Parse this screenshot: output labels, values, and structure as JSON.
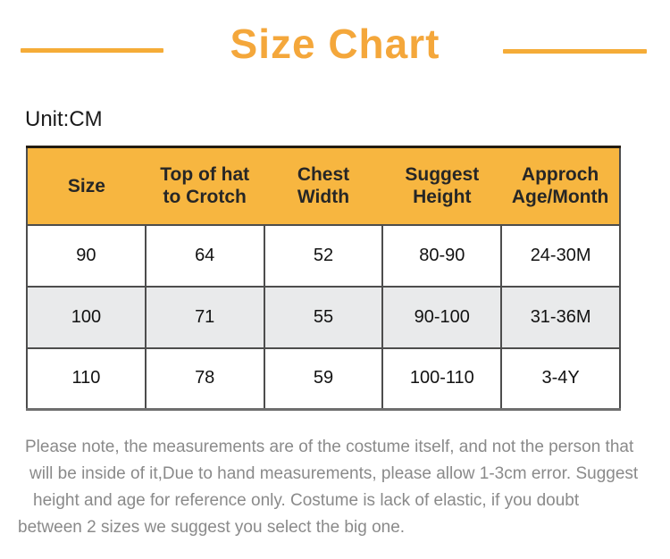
{
  "title": "Size Chart",
  "unit_label": "Unit:CM",
  "colors": {
    "accent_title": "#F4A73B",
    "title_rule": "#F5AC38",
    "header_bg": "#F7B640",
    "header_top_border": "#231C11",
    "grid_border": "#4D4D4D",
    "alt_row_bg": "#E9EAEB",
    "note_text": "#8A8A8A"
  },
  "chart_data": {
    "type": "table",
    "title": "Size Chart",
    "unit": "CM",
    "columns": [
      "Size",
      "Top of hat to Crotch",
      "Chest Width",
      "Suggest Height",
      "Approch Age/Month"
    ],
    "rows": [
      [
        "90",
        "64",
        "52",
        "80-90",
        "24-30M"
      ],
      [
        "100",
        "71",
        "55",
        "90-100",
        "31-36M"
      ],
      [
        "110",
        "78",
        "59",
        "100-110",
        "3-4Y"
      ]
    ]
  },
  "footer": {
    "lines": [
      "Please note, the measurements are of the costume itself, and not the person that",
      "will be inside of it,Due to hand measurements, please allow 1-3cm error. Suggest",
      "height and age for reference only. Costume is lack of elastic, if you doubt",
      "between 2 sizes we suggest you select the big one."
    ]
  }
}
